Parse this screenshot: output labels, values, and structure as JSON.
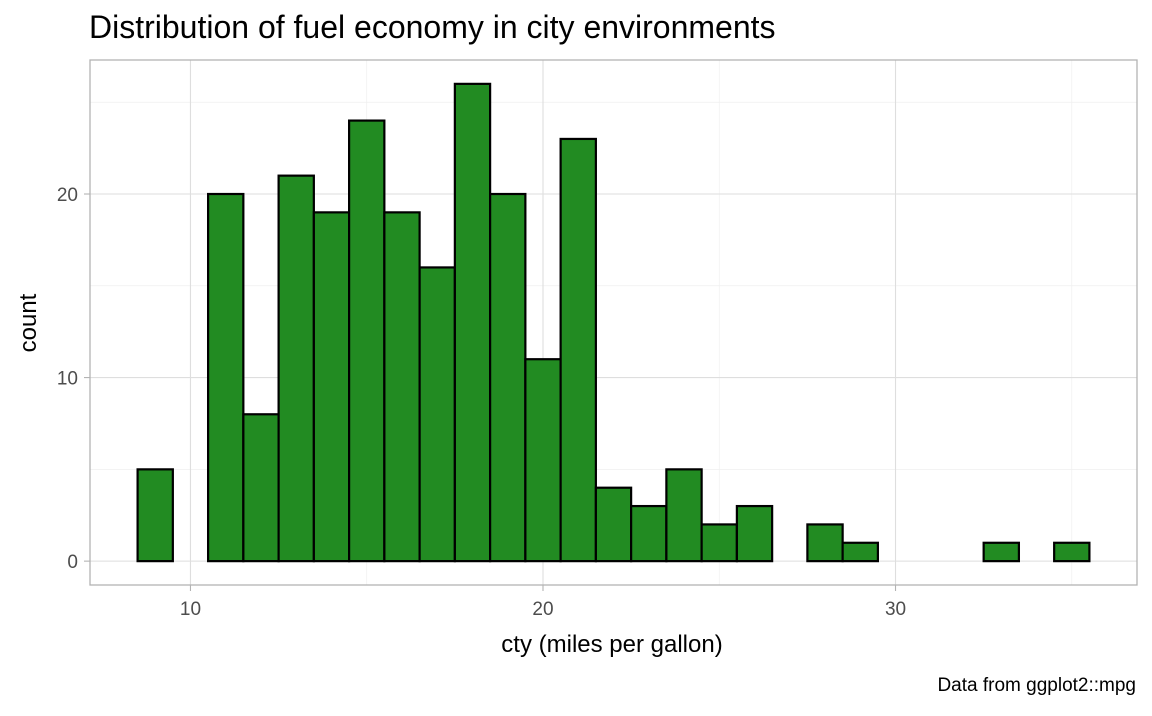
{
  "chart_data": {
    "type": "bar",
    "title": "Distribution of fuel economy in city environments",
    "xlabel": "cty (miles per gallon)",
    "ylabel": "count",
    "caption": "Data from ggplot2::mpg",
    "binwidth": 1,
    "bin_centers": [
      9,
      10,
      11,
      12,
      13,
      14,
      15,
      16,
      17,
      18,
      19,
      20,
      21,
      22,
      23,
      24,
      25,
      26,
      27,
      28,
      29,
      30,
      31,
      32,
      33,
      34,
      35
    ],
    "values": [
      5,
      0,
      20,
      8,
      21,
      19,
      24,
      19,
      16,
      26,
      20,
      11,
      23,
      4,
      3,
      5,
      2,
      3,
      0,
      2,
      1,
      0,
      0,
      0,
      1,
      0,
      1
    ],
    "xlim": [
      7.15,
      36.85
    ],
    "ylim": [
      -1.3,
      27.3
    ],
    "x_ticks": [
      10,
      20,
      30
    ],
    "x_tick_labels": [
      "10",
      "20",
      "30"
    ],
    "y_ticks": [
      0,
      10,
      20
    ],
    "y_tick_labels": [
      "0",
      "10",
      "20"
    ],
    "fill_color": "#228B22",
    "outline_color": "#000000",
    "grid": true,
    "legend": "none"
  }
}
